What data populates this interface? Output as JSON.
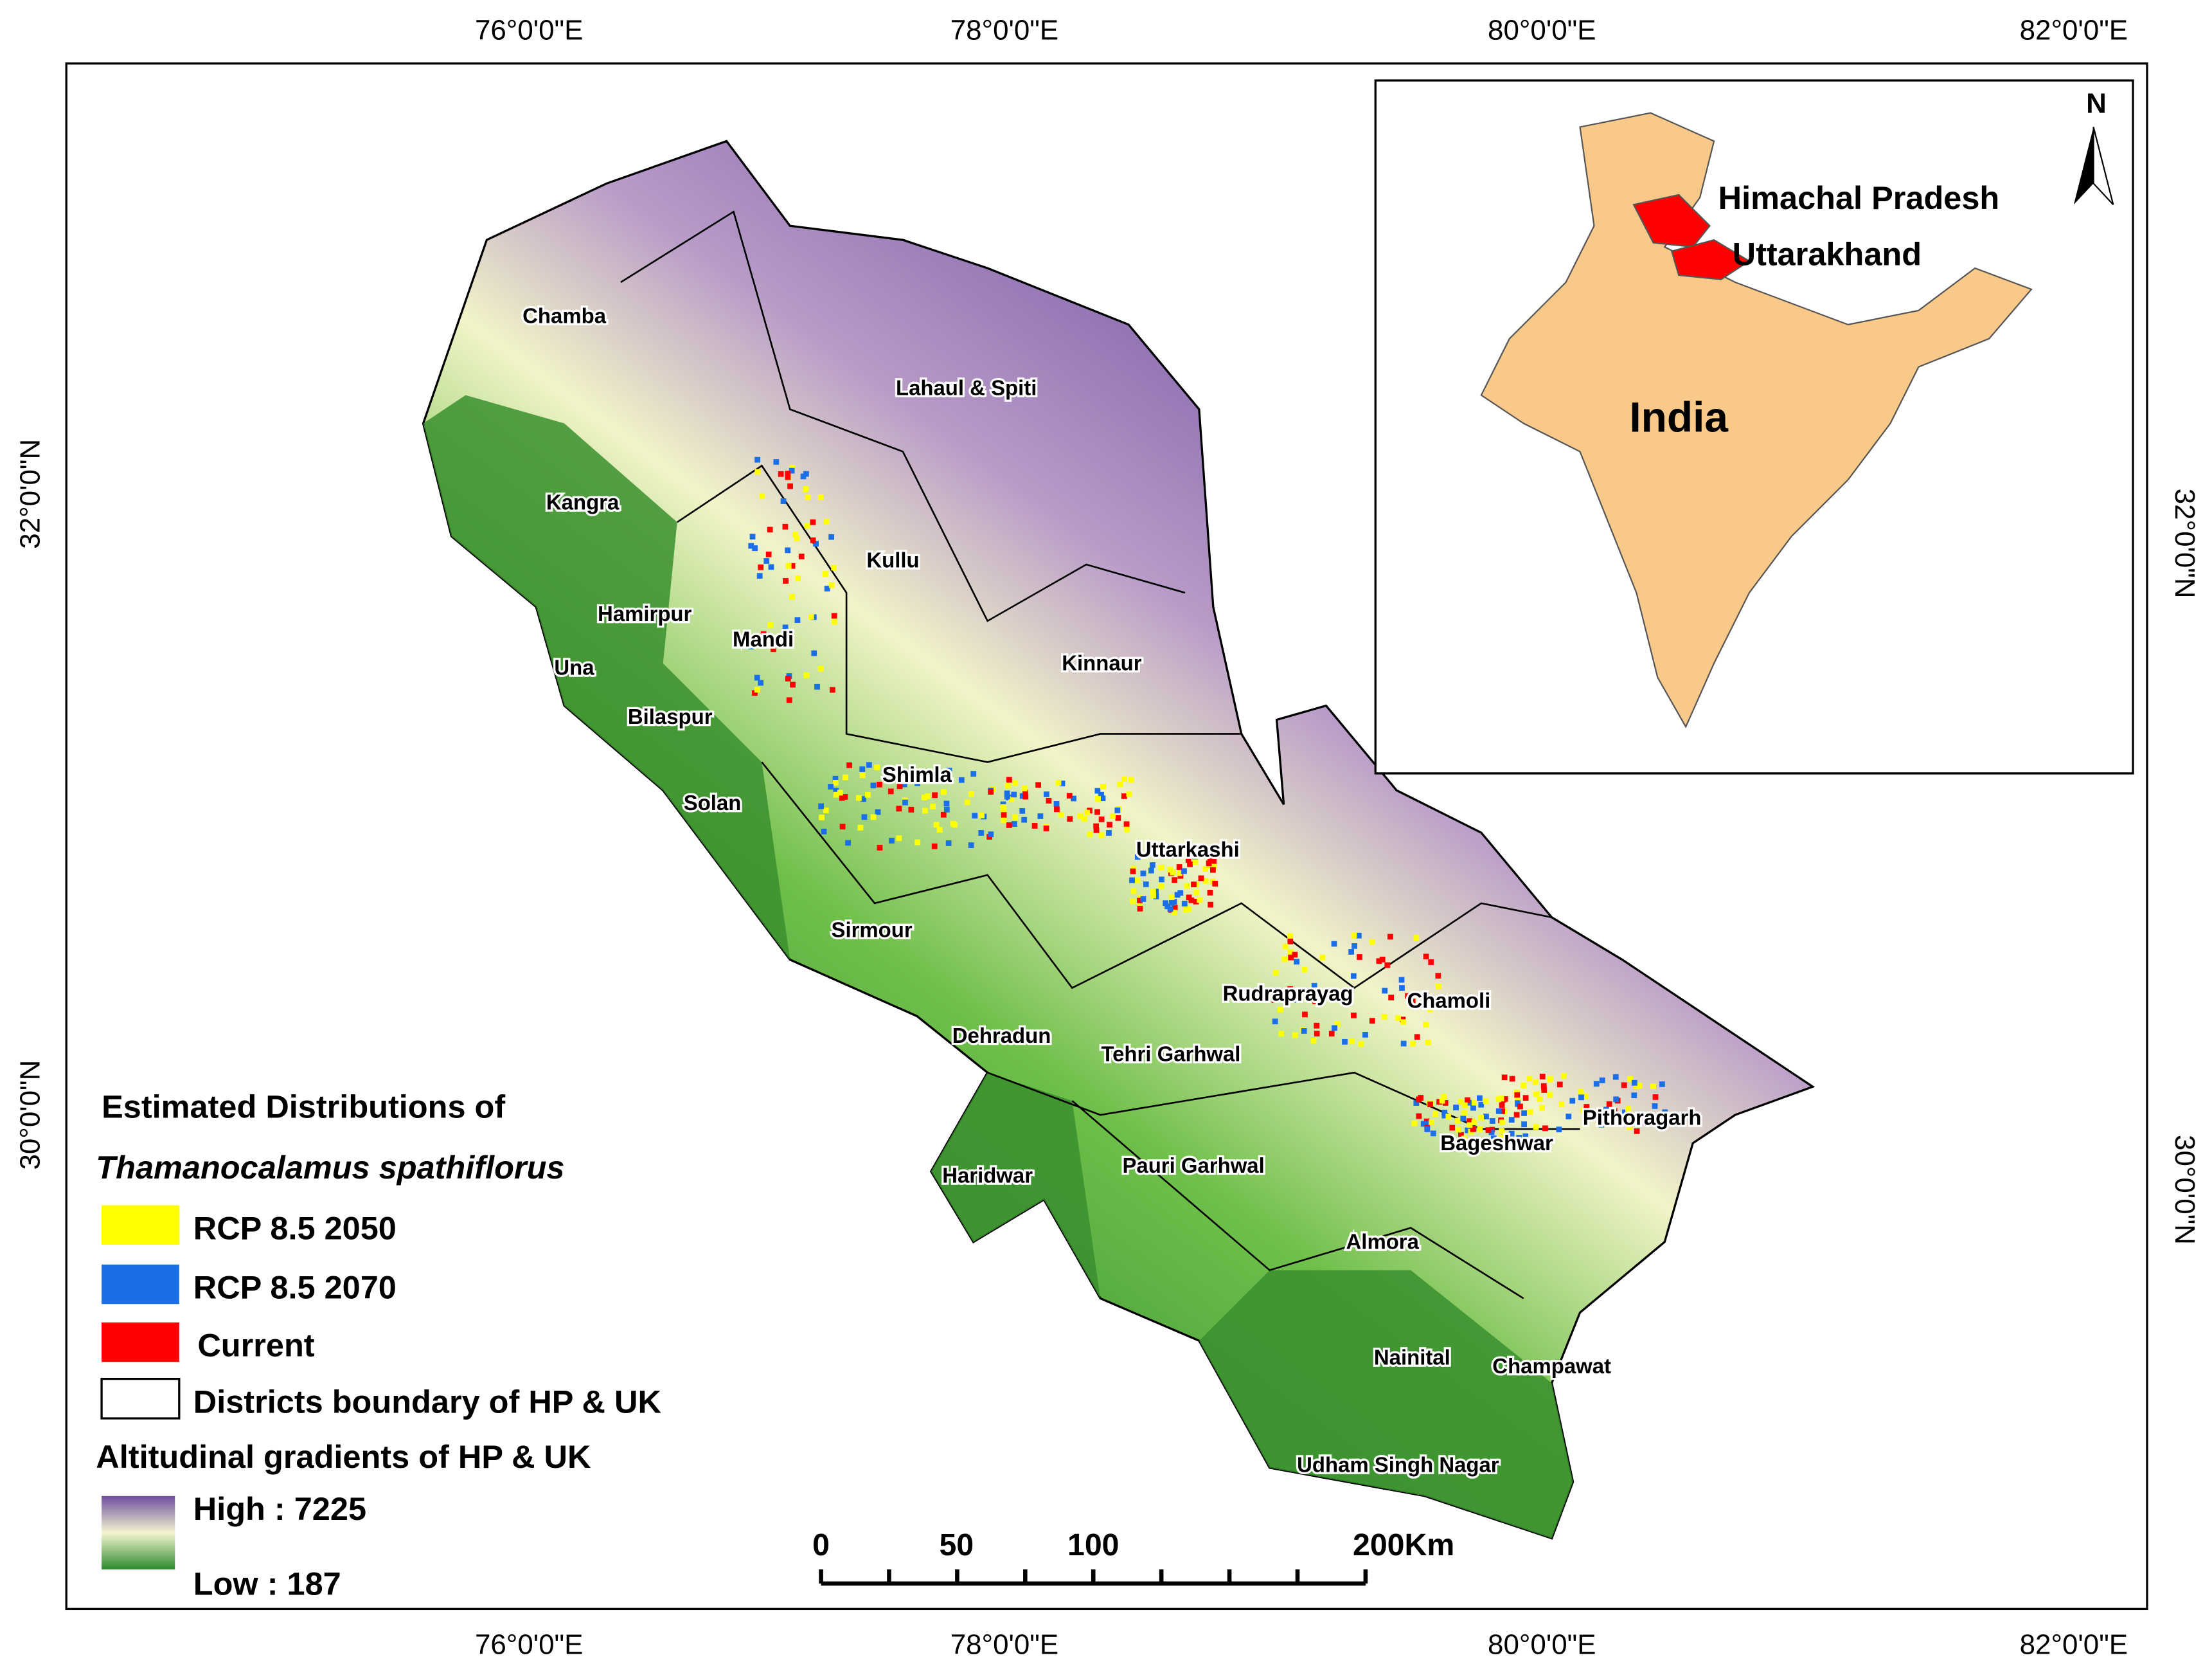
{
  "graticule": {
    "top": [
      "76°0'0\"E",
      "78°0'0\"E",
      "80°0'0\"E",
      "82°0'0\"E"
    ],
    "bottom": [
      "76°0'0\"E",
      "78°0'0\"E",
      "80°0'0\"E",
      "82°0'0\"E"
    ],
    "left": [
      "32°0'0\"N",
      "30°0'0\"N"
    ],
    "right": [
      "32°0'0\"N",
      "30°0'0\"N"
    ]
  },
  "districts": [
    "Chamba",
    "Lahaul & Spiti",
    "Kangra",
    "Kullu",
    "Hamirpur",
    "Mandi",
    "Una",
    "Kinnaur",
    "Bilaspur",
    "Shimla",
    "Solan",
    "Uttarkashi",
    "Sirmour",
    "Rudraprayag",
    "Chamoli",
    "Dehradun",
    "Tehri Garhwal",
    "Pithoragarh",
    "Bageshwar",
    "Haridwar",
    "Pauri Garhwal",
    "Almora",
    "Nainital",
    "Champawat",
    "Udham Singh Nagar"
  ],
  "inset": {
    "north": "N",
    "states": [
      "Himachal Pradesh",
      "Uttarakhand"
    ],
    "country": "India"
  },
  "legend": {
    "title": "Estimated Distributions of",
    "species": "Thamanocalamus spathiflorus",
    "items": [
      {
        "label": "RCP 8.5 2050",
        "color": "#ffff00"
      },
      {
        "label": "RCP 8.5 2070",
        "color": "#1a6fe8"
      },
      {
        "label": "Current",
        "color": "#ff0000"
      },
      {
        "label": "Districts boundary of HP & UK",
        "color": "#ffffff"
      }
    ],
    "gradient_title": "Altitudinal gradients of HP & UK",
    "high": "High : 7225",
    "low": "Low : 187"
  },
  "scale_bar": [
    "0",
    "50",
    "100",
    "200Km"
  ]
}
